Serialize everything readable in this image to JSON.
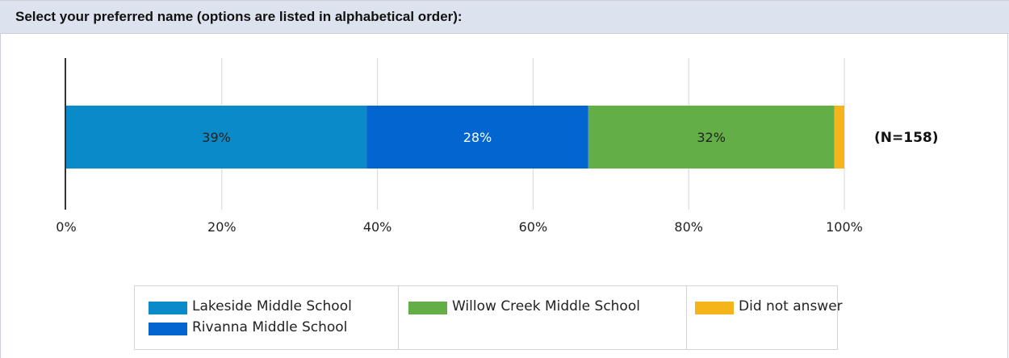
{
  "header": {
    "question": "Select your preferred name (options are listed in alphabetical order):"
  },
  "chart_data": {
    "type": "bar",
    "orientation": "horizontal",
    "stacked": true,
    "title": "",
    "xlabel": "",
    "ylabel": "",
    "xlim": [
      0,
      100
    ],
    "x_ticks": [
      "0%",
      "20%",
      "40%",
      "60%",
      "80%",
      "100%"
    ],
    "grid": true,
    "legend_position": "bottom",
    "annotation": "(N=158)",
    "series": [
      {
        "name": "Lakeside Middle School",
        "value": 38.6,
        "label": "39%",
        "color": "#0b8ac9"
      },
      {
        "name": "Rivanna Middle School",
        "value": 28.5,
        "label": "28%",
        "color": "#0366d0"
      },
      {
        "name": "Willow Creek Middle School",
        "value": 31.6,
        "label": "32%",
        "color": "#63ae47"
      },
      {
        "name": "Did not answer",
        "value": 1.3,
        "label": "",
        "color": "#f4b41a"
      }
    ]
  },
  "legend": {
    "columns": [
      [
        "Lakeside Middle School",
        "Rivanna Middle School"
      ],
      [
        "Willow Creek Middle School"
      ],
      [
        "Did not answer"
      ]
    ]
  }
}
